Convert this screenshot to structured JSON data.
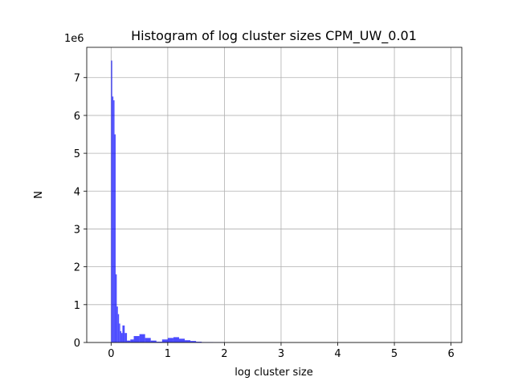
{
  "chart_data": {
    "type": "histogram",
    "title": "Histogram of log cluster sizes CPM_UW_0.01",
    "x_label": "log cluster size",
    "y_label": "N",
    "y_offset_label": "1e6",
    "bins": [
      0.0,
      0.02,
      0.04,
      0.06,
      0.08,
      0.1,
      0.12,
      0.14,
      0.16,
      0.18,
      0.2,
      0.24,
      0.28,
      0.34,
      0.4,
      0.5,
      0.6,
      0.7,
      0.8,
      0.9,
      1.0,
      1.1,
      1.2,
      1.3,
      1.4,
      1.5,
      1.6,
      1.7,
      1.8,
      2.0
    ],
    "values": [
      7.45,
      6.5,
      6.4,
      5.5,
      1.8,
      0.95,
      0.75,
      0.5,
      0.3,
      0.25,
      0.45,
      0.25,
      0.05,
      0.08,
      0.17,
      0.22,
      0.12,
      0.05,
      0.02,
      0.08,
      0.12,
      0.14,
      0.1,
      0.06,
      0.04,
      0.02,
      0.01,
      0.01,
      0.005
    ],
    "color": "#0000ff",
    "alpha": 0.7,
    "xlim": [
      -0.43,
      6.19
    ],
    "ylim": [
      0,
      7.8
    ],
    "xticks": [
      0,
      1,
      2,
      3,
      4,
      5,
      6
    ],
    "yticks": [
      0,
      1,
      2,
      3,
      4,
      5,
      6,
      7
    ],
    "grid": true
  }
}
